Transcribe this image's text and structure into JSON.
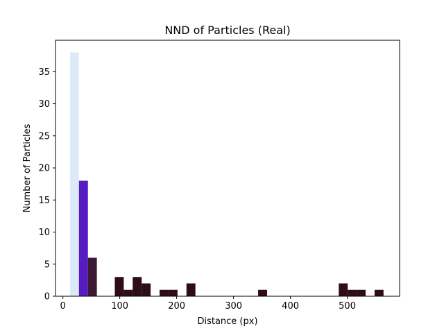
{
  "chart_data": {
    "type": "bar",
    "title": "NND of Particles (Real)",
    "xlabel": "Distance (px)",
    "ylabel": "Number of Particles",
    "xlim": [
      -13,
      592
    ],
    "ylim": [
      0,
      39.9
    ],
    "xticks": [
      0,
      100,
      200,
      300,
      400,
      500
    ],
    "yticks": [
      0,
      5,
      10,
      15,
      20,
      25,
      30,
      35
    ],
    "grid": false,
    "bin_width": 15.75,
    "bars": [
      {
        "x0": 12.5,
        "value": 38,
        "color": "#dce9f8"
      },
      {
        "x0": 28.25,
        "value": 18,
        "color": "#561bc1"
      },
      {
        "x0": 44.0,
        "value": 6,
        "color": "#3c1a36"
      },
      {
        "x0": 91.25,
        "value": 3,
        "color": "#2e0d17"
      },
      {
        "x0": 107.0,
        "value": 1,
        "color": "#2e0d17"
      },
      {
        "x0": 122.75,
        "value": 3,
        "color": "#2e0d17"
      },
      {
        "x0": 138.5,
        "value": 2,
        "color": "#2e0d17"
      },
      {
        "x0": 170.0,
        "value": 1,
        "color": "#2e0d17"
      },
      {
        "x0": 185.75,
        "value": 1,
        "color": "#2e0d17"
      },
      {
        "x0": 217.25,
        "value": 2,
        "color": "#2e0d17"
      },
      {
        "x0": 343.25,
        "value": 1,
        "color": "#2e0d17"
      },
      {
        "x0": 485.0,
        "value": 2,
        "color": "#2e0d17"
      },
      {
        "x0": 500.75,
        "value": 1,
        "color": "#2e0d17"
      },
      {
        "x0": 516.5,
        "value": 1,
        "color": "#2e0d17"
      },
      {
        "x0": 548.0,
        "value": 1,
        "color": "#2e0d17"
      }
    ]
  }
}
